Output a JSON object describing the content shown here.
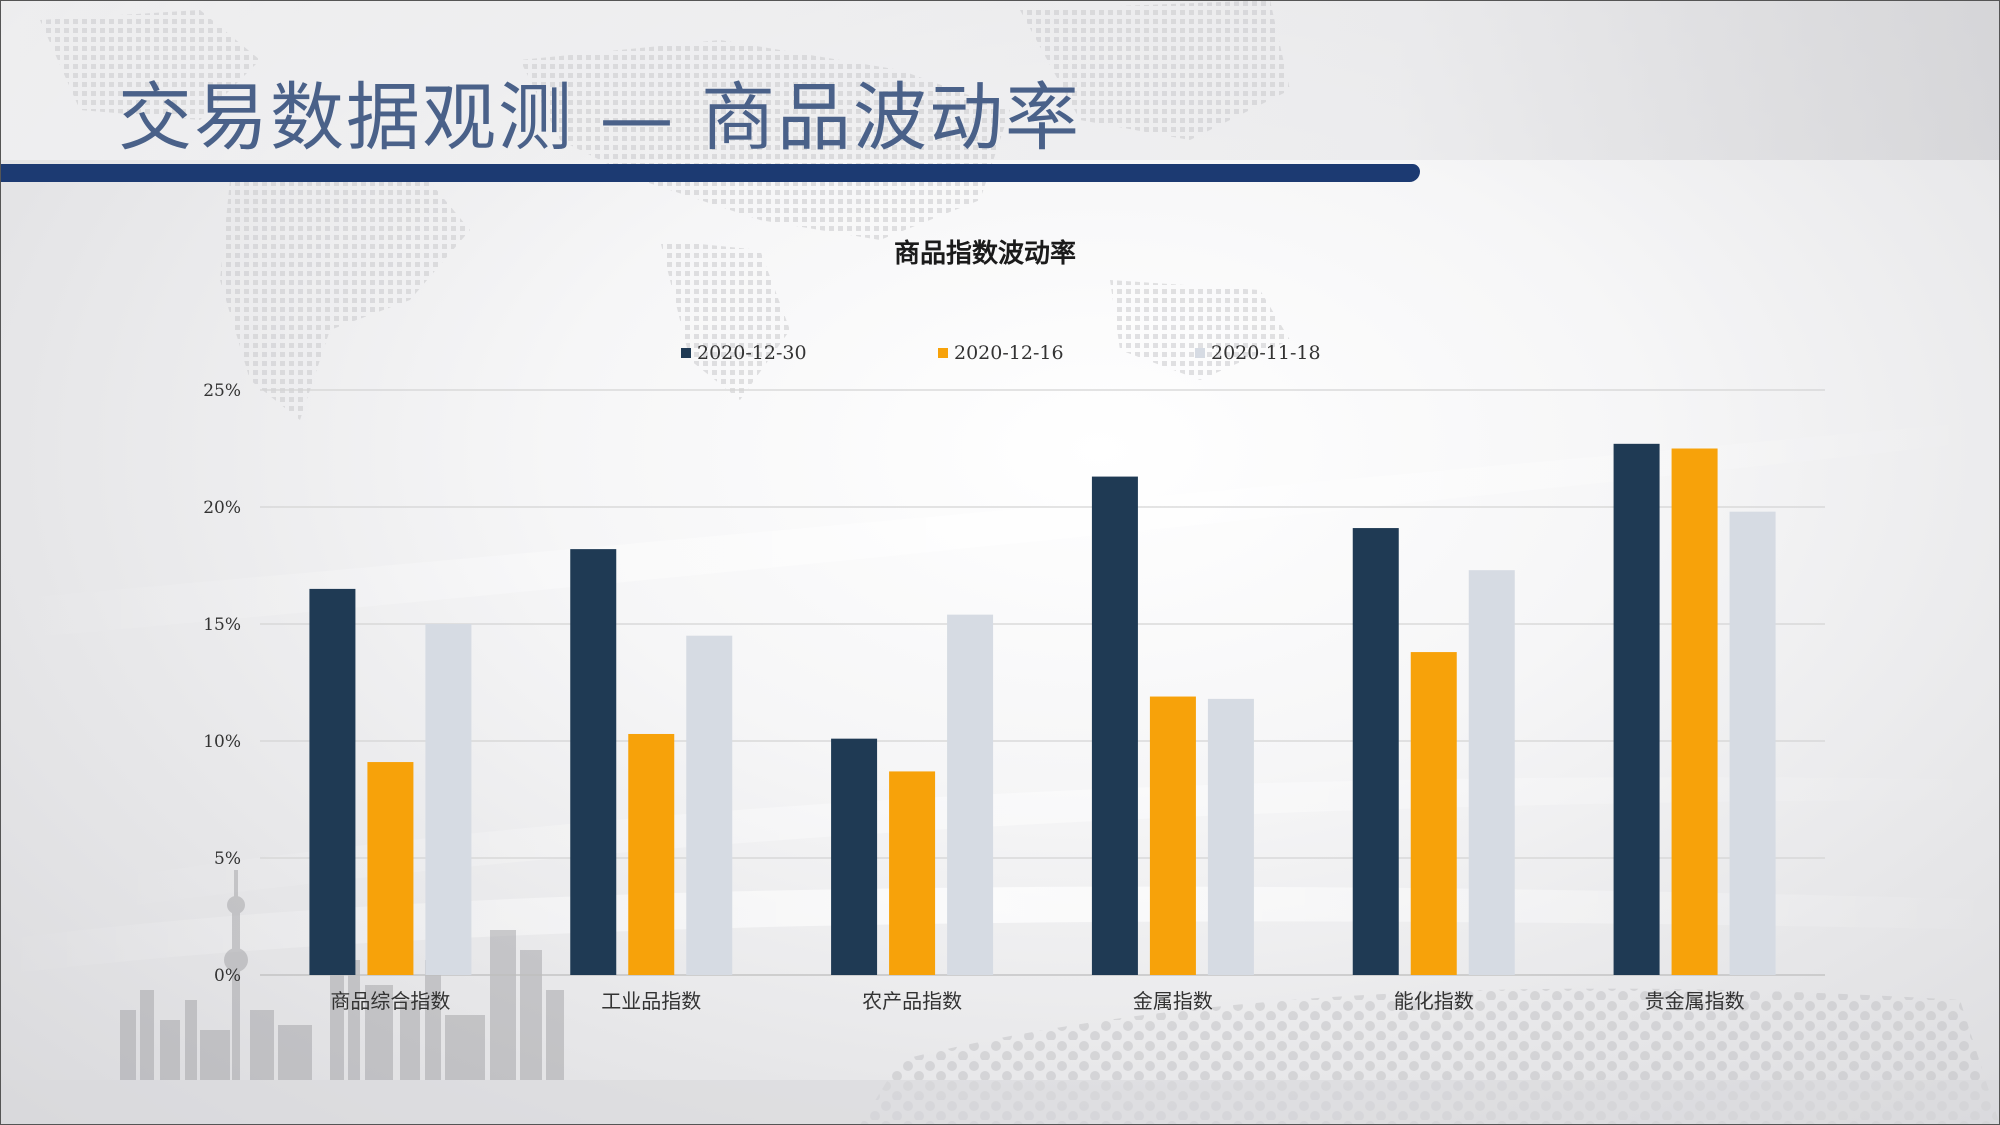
{
  "slide": {
    "title": "交易数据观测 — 商品波动率",
    "accent_color": "#1c3a72"
  },
  "chart_data": {
    "type": "bar",
    "title": "商品指数波动率",
    "xlabel": "",
    "ylabel": "",
    "ylim": [
      0,
      25
    ],
    "yticks": [
      "0%",
      "5%",
      "10%",
      "15%",
      "20%",
      "25%"
    ],
    "grid": true,
    "legend_position": "top",
    "categories": [
      "商品综合指数",
      "工业品指数",
      "农产品指数",
      "金属指数",
      "能化指数",
      "贵金属指数"
    ],
    "series": [
      {
        "name": "2020-12-30",
        "color": "#1f3a54",
        "values": [
          16.5,
          18.2,
          10.1,
          21.3,
          19.1,
          22.7
        ]
      },
      {
        "name": "2020-12-16",
        "color": "#f7a20a",
        "values": [
          9.1,
          10.3,
          8.7,
          11.9,
          13.8,
          22.5
        ]
      },
      {
        "name": "2020-11-18",
        "color": "#d6dbe3",
        "values": [
          15.0,
          14.5,
          15.4,
          11.8,
          17.3,
          19.8
        ]
      }
    ]
  }
}
